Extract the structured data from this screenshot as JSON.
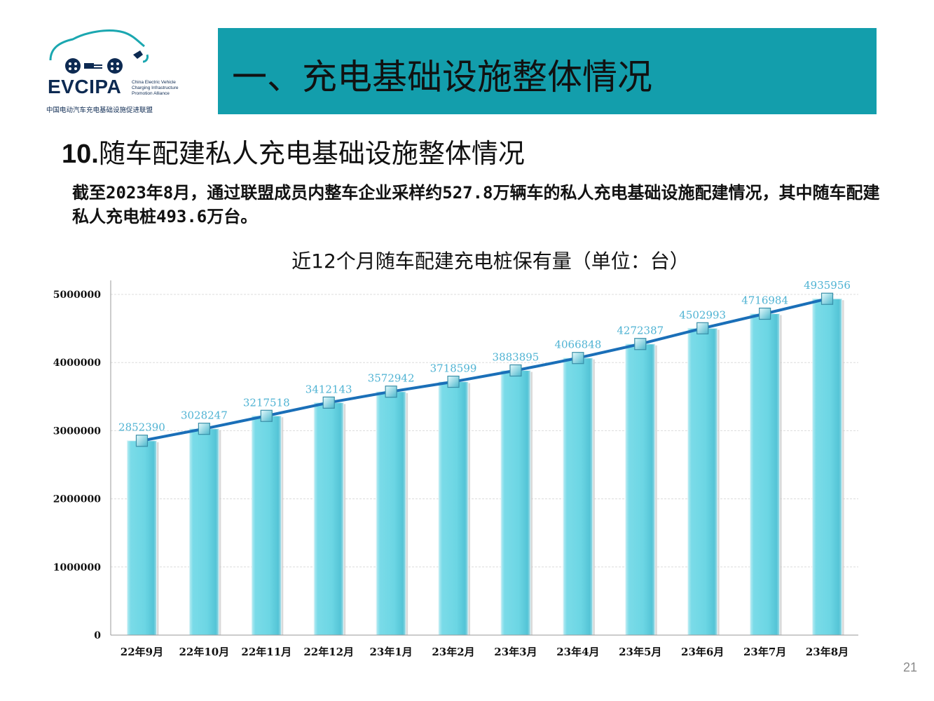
{
  "logo": {
    "name": "EVCIPA",
    "en_lines": [
      "China Electric Vehicle",
      "Charging Infrastructure",
      "Promotion Alliance"
    ],
    "cn": "中国电动汽车充电基础设施促进联盟"
  },
  "header": {
    "title": "一、充电基础设施整体情况"
  },
  "section": {
    "number": "10.",
    "title": "随车配建私人充电基础设施整体情况",
    "description": "截至2023年8月，通过联盟成员内整车企业采样约527.8万辆车的私人充电基础设施配建情况，其中随车配建私人充电桩493.6万台。"
  },
  "chart_data": {
    "type": "bar",
    "title": "近12个月随车配建充电桩保有量（单位：台）",
    "categories": [
      "22年9月",
      "22年10月",
      "22年11月",
      "22年12月",
      "23年1月",
      "23年2月",
      "23年3月",
      "23年4月",
      "23年5月",
      "23年6月",
      "23年7月",
      "23年8月"
    ],
    "values": [
      2852390,
      3028247,
      3217518,
      3412143,
      3572942,
      3718599,
      3883895,
      4066848,
      4272387,
      4502993,
      4716984,
      4935956
    ],
    "overlay_line": true,
    "ylim": [
      0,
      5000000
    ],
    "yticks": [
      0,
      1000000,
      2000000,
      3000000,
      4000000,
      5000000
    ],
    "grid": true,
    "colors": {
      "bar": "#6cd6e4",
      "line": "#1a6fb8",
      "label": "#4fb3d3"
    }
  },
  "footer": {
    "page": "21"
  }
}
